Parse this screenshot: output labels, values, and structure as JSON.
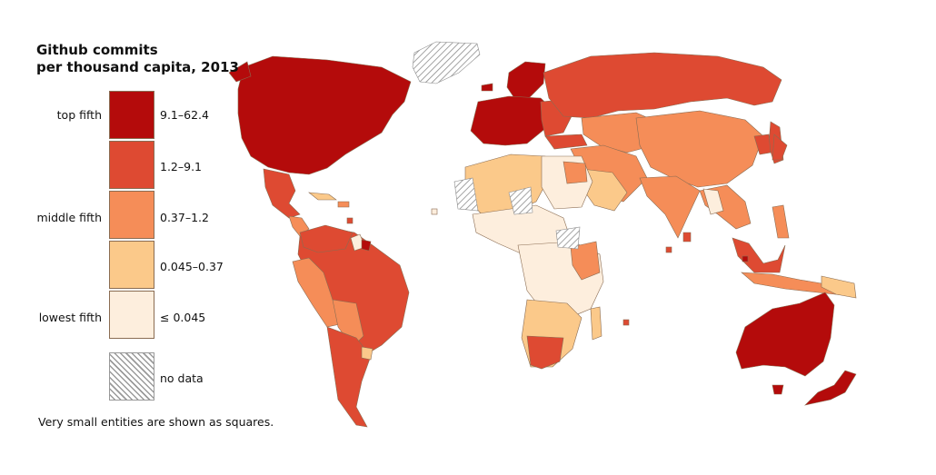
{
  "title": {
    "line1": "Github commits",
    "line2": "per thousand capita, 2013"
  },
  "legend": {
    "tiers": {
      "top": "top fifth",
      "middle": "middle fifth",
      "lowest": "lowest fifth"
    },
    "classes": [
      {
        "label": "9.1–62.4",
        "color": "#b40b0b"
      },
      {
        "label": "1.2–9.1",
        "color": "#de4a32"
      },
      {
        "label": "0.37–1.2",
        "color": "#f58d58"
      },
      {
        "label": "0.045–0.37",
        "color": "#fbc98a"
      },
      {
        "label": "≤ 0.045",
        "color": "#fdeedd"
      }
    ],
    "no_data": {
      "label": "no data",
      "pattern": "hatched-gray"
    }
  },
  "footnote": "Very small entities are shown as squares.",
  "colors": {
    "border": "#8a6c52",
    "nodata_stroke": "#8c8c8c",
    "background": "#ffffff"
  }
}
